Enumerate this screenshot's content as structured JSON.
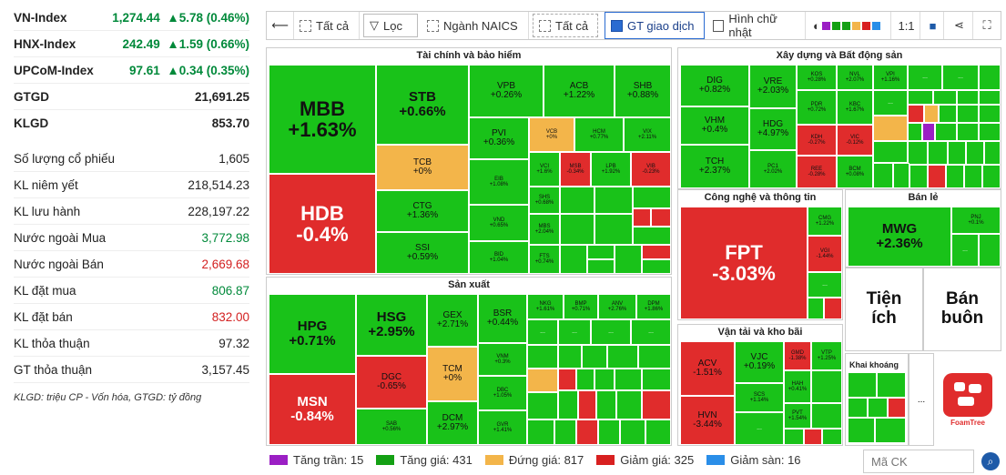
{
  "indices": [
    {
      "name": "VN-Index",
      "value": "1,274.44",
      "change": "▲5.78 (0.46%)"
    },
    {
      "name": "HNX-Index",
      "value": "242.49",
      "change": "▲1.59 (0.66%)"
    },
    {
      "name": "UPCoM-Index",
      "value": "97.61",
      "change": "▲0.34 (0.35%)"
    }
  ],
  "gtgd": {
    "label": "GTGD",
    "value": "21,691.25"
  },
  "klgd": {
    "label": "KLGD",
    "value": "853.70"
  },
  "stats": [
    {
      "label": "Số lượng cổ phiếu",
      "value": "1,605",
      "color": "#222"
    },
    {
      "label": "KL niêm yết",
      "value": "218,514.23",
      "color": "#222"
    },
    {
      "label": "KL lưu hành",
      "value": "228,197.22",
      "color": "#222"
    },
    {
      "label": "Nước ngoài Mua",
      "value": "3,772.98",
      "color": "#00893a"
    },
    {
      "label": "Nước ngoài Bán",
      "value": "2,669.68",
      "color": "#d32020"
    },
    {
      "label": "KL đặt mua",
      "value": "806.87",
      "color": "#00893a"
    },
    {
      "label": "KL đặt bán",
      "value": "832.00",
      "color": "#d32020"
    },
    {
      "label": "KL thỏa thuận",
      "value": "97.32",
      "color": "#222"
    },
    {
      "label": "GT thỏa thuận",
      "value": "3,157.45",
      "color": "#222"
    }
  ],
  "note": "KLGD: triệu CP - Vốn hóa, GTGD: tỷ đồng",
  "toolbar": {
    "all1": "Tất cả",
    "filter": "Lọc",
    "naics": "Ngành NAICS",
    "all2": "Tất cả",
    "gt": "GT giao dịch",
    "rect": "Hình chữ nhật",
    "ratio": "1:1"
  },
  "sections": {
    "finance": "Tài chính và bảo hiểm",
    "realestate": "Xây dựng và Bất động sản",
    "tech": "Công nghệ và thông tin",
    "retail": "Bán lẻ",
    "manufacture": "Sản xuất",
    "transport": "Vận tải và kho bãi",
    "mining": "Khai khoáng"
  },
  "stocks": {
    "MBB": {
      "t": "MBB",
      "p": "+1.63%"
    },
    "HDB": {
      "t": "HDB",
      "p": "-0.4%"
    },
    "STB": {
      "t": "STB",
      "p": "+0.66%"
    },
    "TCB": {
      "t": "TCB",
      "p": "+0%"
    },
    "CTG": {
      "t": "CTG",
      "p": "+1.36%"
    },
    "SSI": {
      "t": "SSI",
      "p": "+0.59%"
    },
    "VPB": {
      "t": "VPB",
      "p": "+0.26%"
    },
    "ACB": {
      "t": "ACB",
      "p": "+1.22%"
    },
    "SHB": {
      "t": "SHB",
      "p": "+0.88%"
    },
    "PVI": {
      "t": "PVI",
      "p": "+0.36%"
    },
    "VCB": {
      "t": "VCB",
      "p": "+0%"
    },
    "HCM": {
      "t": "HCM",
      "p": "+0.77%"
    },
    "VIX": {
      "t": "VIX",
      "p": "+2.11%"
    },
    "EIB": {
      "t": "EIB",
      "p": "+1.08%"
    },
    "VND": {
      "t": "VND",
      "p": "+0.65%"
    },
    "BID": {
      "t": "BID",
      "p": "+1.04%"
    },
    "VCI": {
      "t": "VCI",
      "p": "+1.6%"
    },
    "MSB": {
      "t": "MSB",
      "p": "-0.34%"
    },
    "LPB": {
      "t": "LPB",
      "p": "+1.92%"
    },
    "VIB": {
      "t": "VIB",
      "p": "-0.23%"
    },
    "SHS": {
      "t": "SHS",
      "p": "+0.68%"
    },
    "MBS": {
      "t": "MBS",
      "p": "+2.04%"
    },
    "FTS": {
      "t": "FTS",
      "p": "+0.74%"
    },
    "DIG": {
      "t": "DIG",
      "p": "+0.82%"
    },
    "VHM": {
      "t": "VHM",
      "p": "+0.4%"
    },
    "TCH": {
      "t": "TCH",
      "p": "+2.37%"
    },
    "VRE": {
      "t": "VRE",
      "p": "+2.03%"
    },
    "HDG": {
      "t": "HDG",
      "p": "+4.97%"
    },
    "PC1": {
      "t": "PC1",
      "p": "+2.02%"
    },
    "KOS": {
      "t": "KOS",
      "p": "+0.28%"
    },
    "NVL": {
      "t": "NVL",
      "p": "+2.07%"
    },
    "VPI": {
      "t": "VPI",
      "p": "+1.16%"
    },
    "PDR": {
      "t": "PDR",
      "p": "+0.72%"
    },
    "KBC": {
      "t": "KBC",
      "p": "+1.67%"
    },
    "KDH": {
      "t": "KDH",
      "p": "-0.27%"
    },
    "VIC": {
      "t": "VIC",
      "p": "-0.12%"
    },
    "REE": {
      "t": "REE",
      "p": "-0.28%"
    },
    "BCM": {
      "t": "BCM",
      "p": "+0.08%"
    },
    "FPT": {
      "t": "FPT",
      "p": "-3.03%"
    },
    "CMG": {
      "t": "CMG",
      "p": "+1.22%"
    },
    "VGI": {
      "t": "VGI",
      "p": "-1.44%"
    },
    "MWG": {
      "t": "MWG",
      "p": "+2.36%"
    },
    "PNJ": {
      "t": "PNJ",
      "p": "+0.1%"
    },
    "HPG": {
      "t": "HPG",
      "p": "+0.71%"
    },
    "MSN": {
      "t": "MSN",
      "p": "-0.84%"
    },
    "HSG": {
      "t": "HSG",
      "p": "+2.95%"
    },
    "DGC": {
      "t": "DGC",
      "p": "-0.65%"
    },
    "SAB": {
      "t": "SAB",
      "p": "+0.56%"
    },
    "GEX": {
      "t": "GEX",
      "p": "+2.71%"
    },
    "TCM": {
      "t": "TCM",
      "p": "+0%"
    },
    "DCM": {
      "t": "DCM",
      "p": "+2.97%"
    },
    "BSR": {
      "t": "BSR",
      "p": "+0.44%"
    },
    "VNM": {
      "t": "VNM",
      "p": "+0.3%"
    },
    "DBC": {
      "t": "DBC",
      "p": "+1.05%"
    },
    "GVR": {
      "t": "GVR",
      "p": "+1.41%"
    },
    "NKG": {
      "t": "NKG",
      "p": "+1.61%"
    },
    "BMP": {
      "t": "BMP",
      "p": "+0.71%"
    },
    "ANV": {
      "t": "ANV",
      "p": "+2.76%"
    },
    "DPM": {
      "t": "DPM",
      "p": "+1.86%"
    },
    "ACV": {
      "t": "ACV",
      "p": "-1.51%"
    },
    "HVN": {
      "t": "HVN",
      "p": "-3.44%"
    },
    "VJC": {
      "t": "VJC",
      "p": "+0.19%"
    },
    "SCS": {
      "t": "SCS",
      "p": "+1.14%"
    },
    "GMD": {
      "t": "GMD",
      "p": "-1.38%"
    },
    "HAH": {
      "t": "HAH",
      "p": "+0.41%"
    },
    "VTP": {
      "t": "VTP",
      "p": "+1.25%"
    },
    "PVT": {
      "t": "PVT",
      "p": "+1.54%"
    }
  },
  "tiles": {
    "tien_ich": "Tiện ích",
    "ban_buon": "Bán buôn",
    "more": "...",
    "foamtree": "FoamTree"
  },
  "legend": [
    {
      "label": "Tăng trần: 15",
      "color": "#9b1fc4"
    },
    {
      "label": "Tăng giá: 431",
      "color": "#14a014"
    },
    {
      "label": "Đứng giá: 817",
      "color": "#f3b54a"
    },
    {
      "label": "Giảm giá: 325",
      "color": "#d82020"
    },
    {
      "label": "Giảm sàn: 16",
      "color": "#2a8ee8"
    }
  ],
  "search": {
    "placeholder": "Mã CK"
  },
  "search_icon": "search-icon"
}
